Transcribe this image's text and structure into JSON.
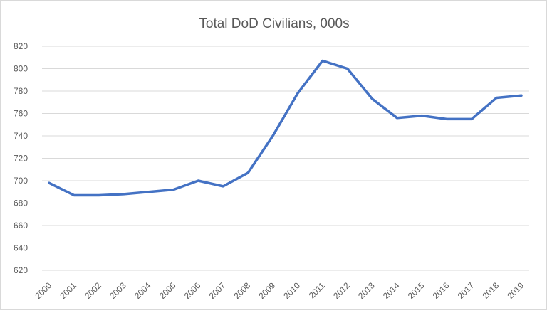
{
  "chart_data": {
    "type": "line",
    "title": "Total DoD Civilians, 000s",
    "xlabel": "",
    "ylabel": "",
    "categories": [
      "2000",
      "2001",
      "2002",
      "2003",
      "2004",
      "2005",
      "2006",
      "2007",
      "2008",
      "2009",
      "2010",
      "2011",
      "2012",
      "2013",
      "2014",
      "2015",
      "2016",
      "2017",
      "2018",
      "2019"
    ],
    "series": [
      {
        "values": [
          698,
          687,
          687,
          688,
          690,
          692,
          700,
          695,
          707,
          740,
          778,
          807,
          800,
          773,
          756,
          758,
          755,
          755,
          774,
          776
        ],
        "color": "#4472c4"
      }
    ],
    "ylim": [
      620,
      820
    ],
    "yticks": [
      620,
      640,
      660,
      680,
      700,
      720,
      740,
      760,
      780,
      800,
      820
    ],
    "grid": true,
    "legend": "none"
  }
}
